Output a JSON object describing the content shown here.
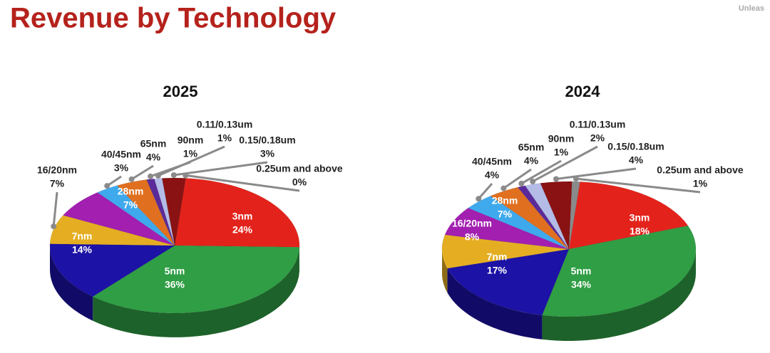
{
  "title": "Revenue by Technology",
  "watermark": "Unleas",
  "chart_data": [
    {
      "type": "pie",
      "title": "2025",
      "categories": [
        "3nm",
        "5nm",
        "7nm",
        "16/20nm",
        "28nm",
        "40/45nm",
        "65nm",
        "90nm",
        "0.11/0.13um",
        "0.15/0.18um",
        "0.25um and above"
      ],
      "values": [
        24,
        36,
        14,
        7,
        7,
        3,
        4,
        1,
        1,
        3,
        0
      ],
      "value_labels": [
        "24%",
        "36%",
        "14%",
        "7%",
        "7%",
        "3%",
        "4%",
        "1%",
        "1%",
        "3%",
        "0%"
      ],
      "colors": [
        "#e3231b",
        "#2f9e44",
        "#1c12a6",
        "#e5ae22",
        "#a21fb0",
        "#3fa9ee",
        "#e0701f",
        "#5b2a9a",
        "#b3bbe6",
        "#8a1212",
        "#8a8a8a"
      ]
    },
    {
      "type": "pie",
      "title": "2024",
      "categories": [
        "3nm",
        "5nm",
        "7nm",
        "16/20nm",
        "28nm",
        "40/45nm",
        "65nm",
        "90nm",
        "0.11/0.13um",
        "0.15/0.18um",
        "0.25um and above"
      ],
      "values": [
        18,
        34,
        17,
        8,
        7,
        4,
        4,
        1,
        2,
        4,
        1
      ],
      "value_labels": [
        "18%",
        "34%",
        "17%",
        "8%",
        "7%",
        "4%",
        "4%",
        "1%",
        "2%",
        "4%",
        "1%"
      ],
      "colors": [
        "#e3231b",
        "#2f9e44",
        "#1c12a6",
        "#e5ae22",
        "#a21fb0",
        "#3fa9ee",
        "#e0701f",
        "#5b2a9a",
        "#b3bbe6",
        "#8a1212",
        "#8a8a8a"
      ]
    }
  ]
}
